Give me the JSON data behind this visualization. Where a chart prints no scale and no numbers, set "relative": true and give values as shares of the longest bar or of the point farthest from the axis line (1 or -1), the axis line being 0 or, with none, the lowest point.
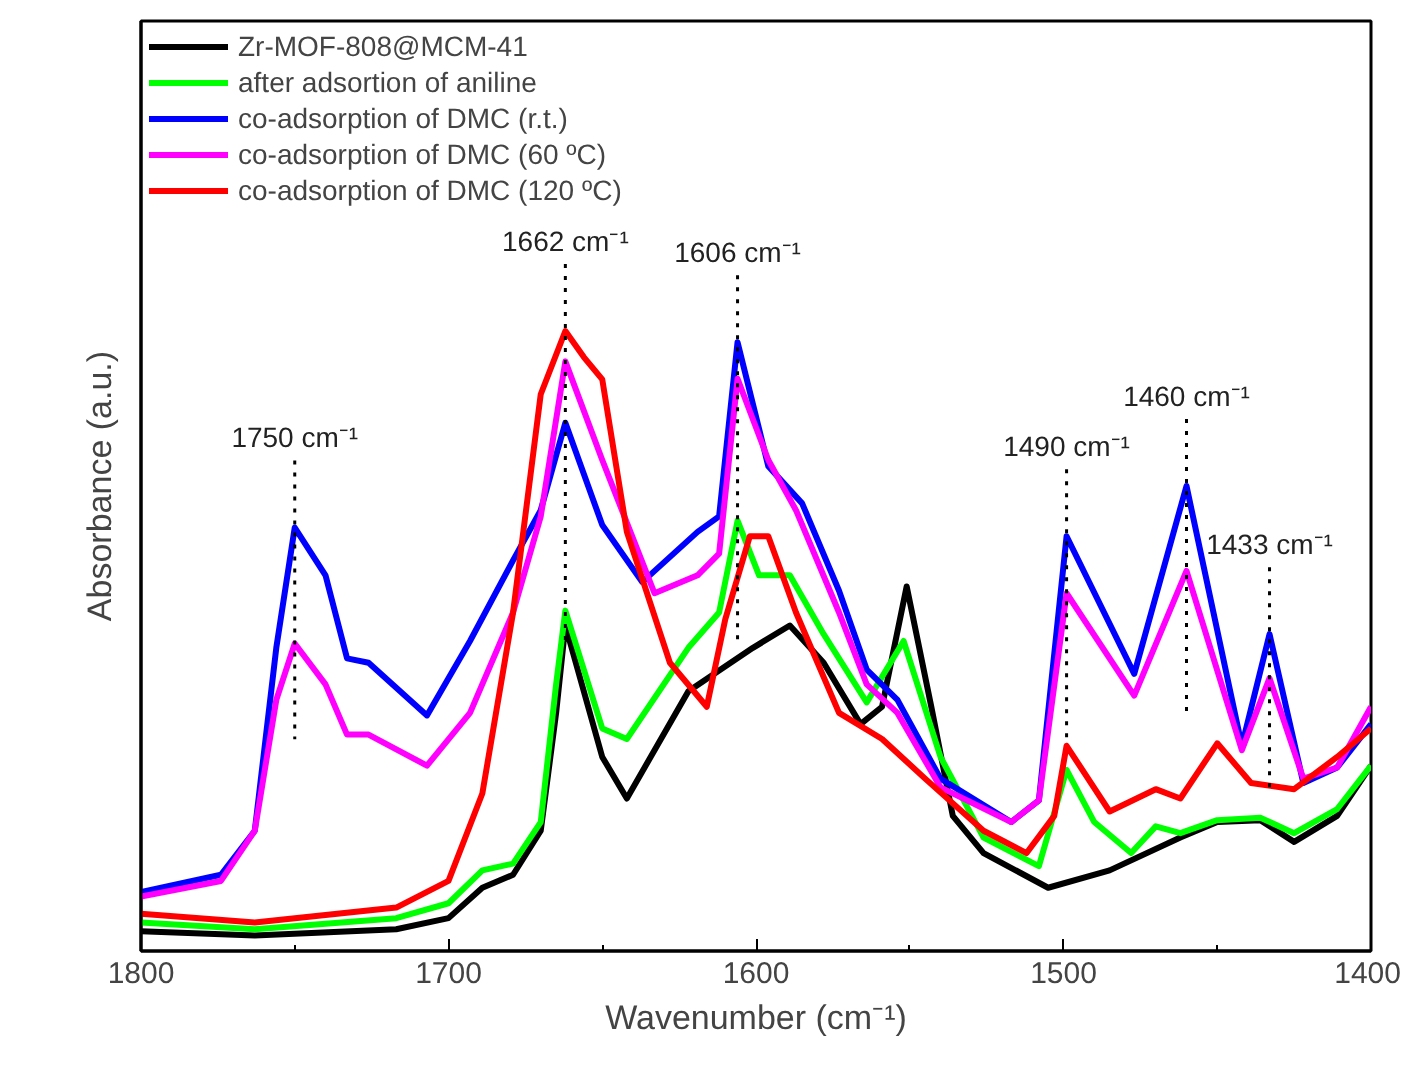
{
  "chart_data": {
    "type": "line",
    "relative": true,
    "xlabel": "Wavenumber (cm⁻¹)",
    "ylabel": "Absorbance (a.u.)",
    "xlim": [
      1800,
      1400
    ],
    "xticks": [
      1800,
      1700,
      1600,
      1500,
      1400
    ],
    "grid": false,
    "legend": "top left",
    "marker": "none",
    "line_style": "solid",
    "series": [
      {
        "name": "Zr-MOF-808@MCM-41",
        "color": "#000000",
        "x": [
          1800,
          1763,
          1717,
          1700,
          1689,
          1679,
          1670,
          1665,
          1662,
          1650,
          1642,
          1622,
          1601,
          1589,
          1578,
          1566,
          1559,
          1551,
          1543,
          1536,
          1526,
          1505,
          1485,
          1462,
          1450,
          1436,
          1425,
          1411,
          1400
        ],
        "values": [
          0.032,
          0.025,
          0.035,
          0.053,
          0.102,
          0.123,
          0.194,
          0.384,
          0.525,
          0.313,
          0.246,
          0.419,
          0.489,
          0.525,
          0.465,
          0.366,
          0.394,
          0.588,
          0.394,
          0.218,
          0.158,
          0.102,
          0.13,
          0.183,
          0.208,
          0.211,
          0.176,
          0.218,
          0.299
        ]
      },
      {
        "name": "after adsortion of aniline",
        "color": "#00ff00",
        "x": [
          1800,
          1763,
          1717,
          1700,
          1689,
          1679,
          1670,
          1665,
          1662,
          1650,
          1642,
          1622,
          1612,
          1606,
          1599,
          1589,
          1578,
          1564,
          1552,
          1540,
          1526,
          1508,
          1499,
          1490,
          1478,
          1470,
          1462,
          1450,
          1436,
          1425,
          1411,
          1400
        ],
        "values": [
          0.046,
          0.035,
          0.053,
          0.077,
          0.13,
          0.141,
          0.208,
          0.43,
          0.549,
          0.359,
          0.342,
          0.489,
          0.546,
          0.694,
          0.606,
          0.606,
          0.511,
          0.401,
          0.5,
          0.313,
          0.183,
          0.137,
          0.292,
          0.208,
          0.158,
          0.201,
          0.19,
          0.211,
          0.215,
          0.19,
          0.229,
          0.299
        ]
      },
      {
        "name": "co-adsorption of DMC (r.t.)",
        "color": "#0000ff",
        "x": [
          1800,
          1774,
          1763,
          1756,
          1750,
          1740,
          1733,
          1726,
          1707,
          1693,
          1679,
          1670,
          1662,
          1650,
          1637,
          1619,
          1612,
          1606,
          1596,
          1585,
          1573,
          1564,
          1554,
          1540,
          1517,
          1508,
          1499,
          1477,
          1460,
          1442,
          1433,
          1422,
          1411,
          1400
        ],
        "values": [
          0.095,
          0.123,
          0.194,
          0.489,
          0.683,
          0.606,
          0.472,
          0.465,
          0.38,
          0.5,
          0.63,
          0.711,
          0.852,
          0.687,
          0.595,
          0.676,
          0.701,
          0.982,
          0.782,
          0.722,
          0.581,
          0.454,
          0.405,
          0.278,
          0.208,
          0.243,
          0.669,
          0.447,
          0.75,
          0.331,
          0.511,
          0.271,
          0.296,
          0.366
        ]
      },
      {
        "name": "co-adsorption of DMC (60 ºC)",
        "color": "#ff00ff",
        "x": [
          1800,
          1774,
          1763,
          1756,
          1750,
          1740,
          1733,
          1726,
          1707,
          1693,
          1679,
          1670,
          1662,
          1650,
          1633,
          1619,
          1612,
          1606,
          1596,
          1587,
          1573,
          1564,
          1554,
          1540,
          1517,
          1508,
          1499,
          1477,
          1460,
          1442,
          1433,
          1422,
          1411,
          1400
        ],
        "values": [
          0.088,
          0.113,
          0.194,
          0.405,
          0.496,
          0.43,
          0.349,
          0.349,
          0.299,
          0.384,
          0.546,
          0.701,
          0.951,
          0.792,
          0.577,
          0.606,
          0.641,
          0.923,
          0.792,
          0.711,
          0.546,
          0.43,
          0.384,
          0.264,
          0.208,
          0.243,
          0.577,
          0.412,
          0.613,
          0.324,
          0.44,
          0.278,
          0.296,
          0.394
        ]
      },
      {
        "name": "co-adsorption of DMC (120 ºC)",
        "color": "#ff0000",
        "x": [
          1800,
          1763,
          1717,
          1700,
          1689,
          1679,
          1670,
          1662,
          1656,
          1650,
          1642,
          1628,
          1616,
          1610,
          1602,
          1596,
          1587,
          1573,
          1559,
          1545,
          1526,
          1512,
          1503,
          1499,
          1485,
          1470,
          1462,
          1450,
          1439,
          1425,
          1411,
          1400
        ],
        "values": [
          0.06,
          0.046,
          0.07,
          0.113,
          0.254,
          0.546,
          0.898,
          1.0,
          0.958,
          0.922,
          0.676,
          0.465,
          0.394,
          0.535,
          0.669,
          0.669,
          0.546,
          0.384,
          0.342,
          0.278,
          0.194,
          0.158,
          0.218,
          0.331,
          0.225,
          0.261,
          0.246,
          0.335,
          0.271,
          0.261,
          0.313,
          0.359
        ]
      }
    ],
    "annotations": [
      {
        "text": "1750 cm⁻¹",
        "x": 1750,
        "y": 0.683
      },
      {
        "text": "1662 cm⁻¹",
        "x": 1662,
        "y": 1.0
      },
      {
        "text": "1606 cm⁻¹",
        "x": 1606,
        "y": 0.982
      },
      {
        "text": "1490 cm⁻¹",
        "x": 1499,
        "y": 0.669
      },
      {
        "text": "1460 cm⁻¹",
        "x": 1460,
        "y": 0.75
      },
      {
        "text": "1433 cm⁻¹",
        "x": 1433,
        "y": 0.511
      }
    ]
  }
}
